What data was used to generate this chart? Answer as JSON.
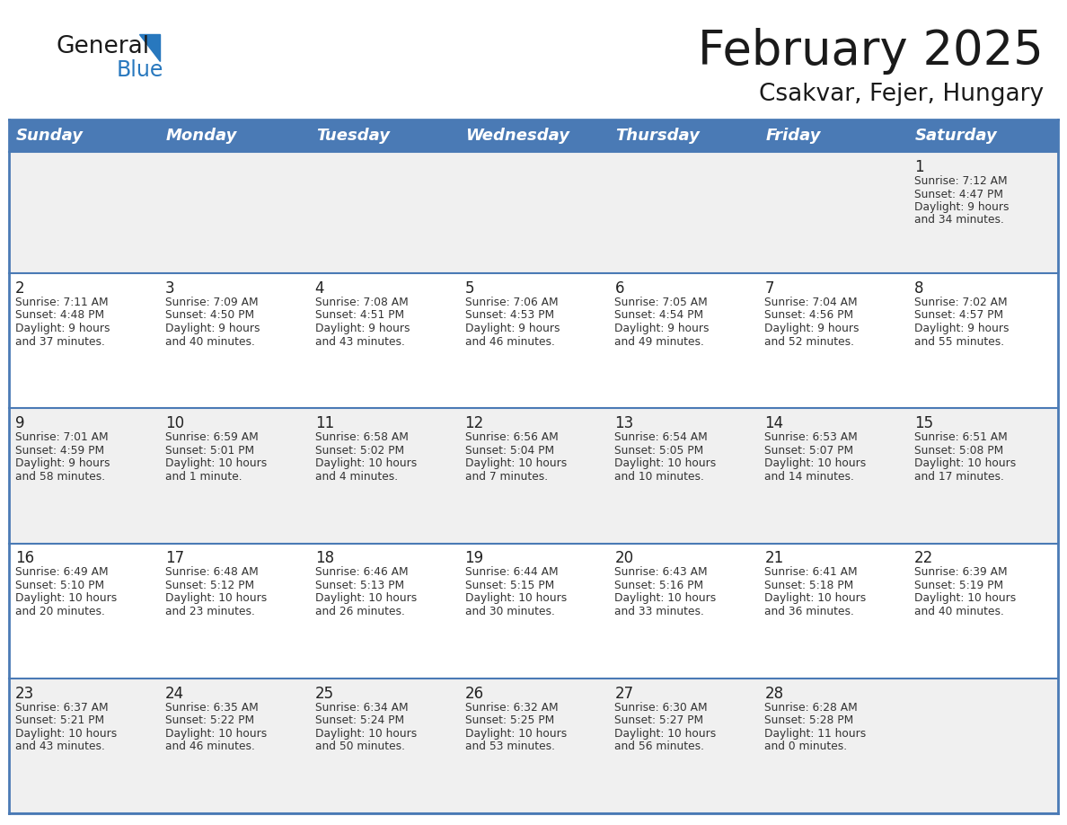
{
  "title": "February 2025",
  "subtitle": "Csakvar, Fejer, Hungary",
  "days_of_week": [
    "Sunday",
    "Monday",
    "Tuesday",
    "Wednesday",
    "Thursday",
    "Friday",
    "Saturday"
  ],
  "header_bg": "#4a7ab5",
  "header_text_color": "#ffffff",
  "row_bg_odd": "#f0f0f0",
  "row_bg_even": "#ffffff",
  "border_color": "#4a7ab5",
  "day_number_color": "#222222",
  "text_color": "#333333",
  "logo_general_color": "#1a1a1a",
  "logo_blue_color": "#2878be",
  "calendar_data": [
    [
      null,
      null,
      null,
      null,
      null,
      null,
      1
    ],
    [
      2,
      3,
      4,
      5,
      6,
      7,
      8
    ],
    [
      9,
      10,
      11,
      12,
      13,
      14,
      15
    ],
    [
      16,
      17,
      18,
      19,
      20,
      21,
      22
    ],
    [
      23,
      24,
      25,
      26,
      27,
      28,
      null
    ]
  ],
  "sun_data": {
    "1": {
      "rise": "7:12 AM",
      "set": "4:47 PM",
      "dl1": "Daylight: 9 hours",
      "dl2": "and 34 minutes."
    },
    "2": {
      "rise": "7:11 AM",
      "set": "4:48 PM",
      "dl1": "Daylight: 9 hours",
      "dl2": "and 37 minutes."
    },
    "3": {
      "rise": "7:09 AM",
      "set": "4:50 PM",
      "dl1": "Daylight: 9 hours",
      "dl2": "and 40 minutes."
    },
    "4": {
      "rise": "7:08 AM",
      "set": "4:51 PM",
      "dl1": "Daylight: 9 hours",
      "dl2": "and 43 minutes."
    },
    "5": {
      "rise": "7:06 AM",
      "set": "4:53 PM",
      "dl1": "Daylight: 9 hours",
      "dl2": "and 46 minutes."
    },
    "6": {
      "rise": "7:05 AM",
      "set": "4:54 PM",
      "dl1": "Daylight: 9 hours",
      "dl2": "and 49 minutes."
    },
    "7": {
      "rise": "7:04 AM",
      "set": "4:56 PM",
      "dl1": "Daylight: 9 hours",
      "dl2": "and 52 minutes."
    },
    "8": {
      "rise": "7:02 AM",
      "set": "4:57 PM",
      "dl1": "Daylight: 9 hours",
      "dl2": "and 55 minutes."
    },
    "9": {
      "rise": "7:01 AM",
      "set": "4:59 PM",
      "dl1": "Daylight: 9 hours",
      "dl2": "and 58 minutes."
    },
    "10": {
      "rise": "6:59 AM",
      "set": "5:01 PM",
      "dl1": "Daylight: 10 hours",
      "dl2": "and 1 minute."
    },
    "11": {
      "rise": "6:58 AM",
      "set": "5:02 PM",
      "dl1": "Daylight: 10 hours",
      "dl2": "and 4 minutes."
    },
    "12": {
      "rise": "6:56 AM",
      "set": "5:04 PM",
      "dl1": "Daylight: 10 hours",
      "dl2": "and 7 minutes."
    },
    "13": {
      "rise": "6:54 AM",
      "set": "5:05 PM",
      "dl1": "Daylight: 10 hours",
      "dl2": "and 10 minutes."
    },
    "14": {
      "rise": "6:53 AM",
      "set": "5:07 PM",
      "dl1": "Daylight: 10 hours",
      "dl2": "and 14 minutes."
    },
    "15": {
      "rise": "6:51 AM",
      "set": "5:08 PM",
      "dl1": "Daylight: 10 hours",
      "dl2": "and 17 minutes."
    },
    "16": {
      "rise": "6:49 AM",
      "set": "5:10 PM",
      "dl1": "Daylight: 10 hours",
      "dl2": "and 20 minutes."
    },
    "17": {
      "rise": "6:48 AM",
      "set": "5:12 PM",
      "dl1": "Daylight: 10 hours",
      "dl2": "and 23 minutes."
    },
    "18": {
      "rise": "6:46 AM",
      "set": "5:13 PM",
      "dl1": "Daylight: 10 hours",
      "dl2": "and 26 minutes."
    },
    "19": {
      "rise": "6:44 AM",
      "set": "5:15 PM",
      "dl1": "Daylight: 10 hours",
      "dl2": "and 30 minutes."
    },
    "20": {
      "rise": "6:43 AM",
      "set": "5:16 PM",
      "dl1": "Daylight: 10 hours",
      "dl2": "and 33 minutes."
    },
    "21": {
      "rise": "6:41 AM",
      "set": "5:18 PM",
      "dl1": "Daylight: 10 hours",
      "dl2": "and 36 minutes."
    },
    "22": {
      "rise": "6:39 AM",
      "set": "5:19 PM",
      "dl1": "Daylight: 10 hours",
      "dl2": "and 40 minutes."
    },
    "23": {
      "rise": "6:37 AM",
      "set": "5:21 PM",
      "dl1": "Daylight: 10 hours",
      "dl2": "and 43 minutes."
    },
    "24": {
      "rise": "6:35 AM",
      "set": "5:22 PM",
      "dl1": "Daylight: 10 hours",
      "dl2": "and 46 minutes."
    },
    "25": {
      "rise": "6:34 AM",
      "set": "5:24 PM",
      "dl1": "Daylight: 10 hours",
      "dl2": "and 50 minutes."
    },
    "26": {
      "rise": "6:32 AM",
      "set": "5:25 PM",
      "dl1": "Daylight: 10 hours",
      "dl2": "and 53 minutes."
    },
    "27": {
      "rise": "6:30 AM",
      "set": "5:27 PM",
      "dl1": "Daylight: 10 hours",
      "dl2": "and 56 minutes."
    },
    "28": {
      "rise": "6:28 AM",
      "set": "5:28 PM",
      "dl1": "Daylight: 11 hours",
      "dl2": "and 0 minutes."
    }
  }
}
